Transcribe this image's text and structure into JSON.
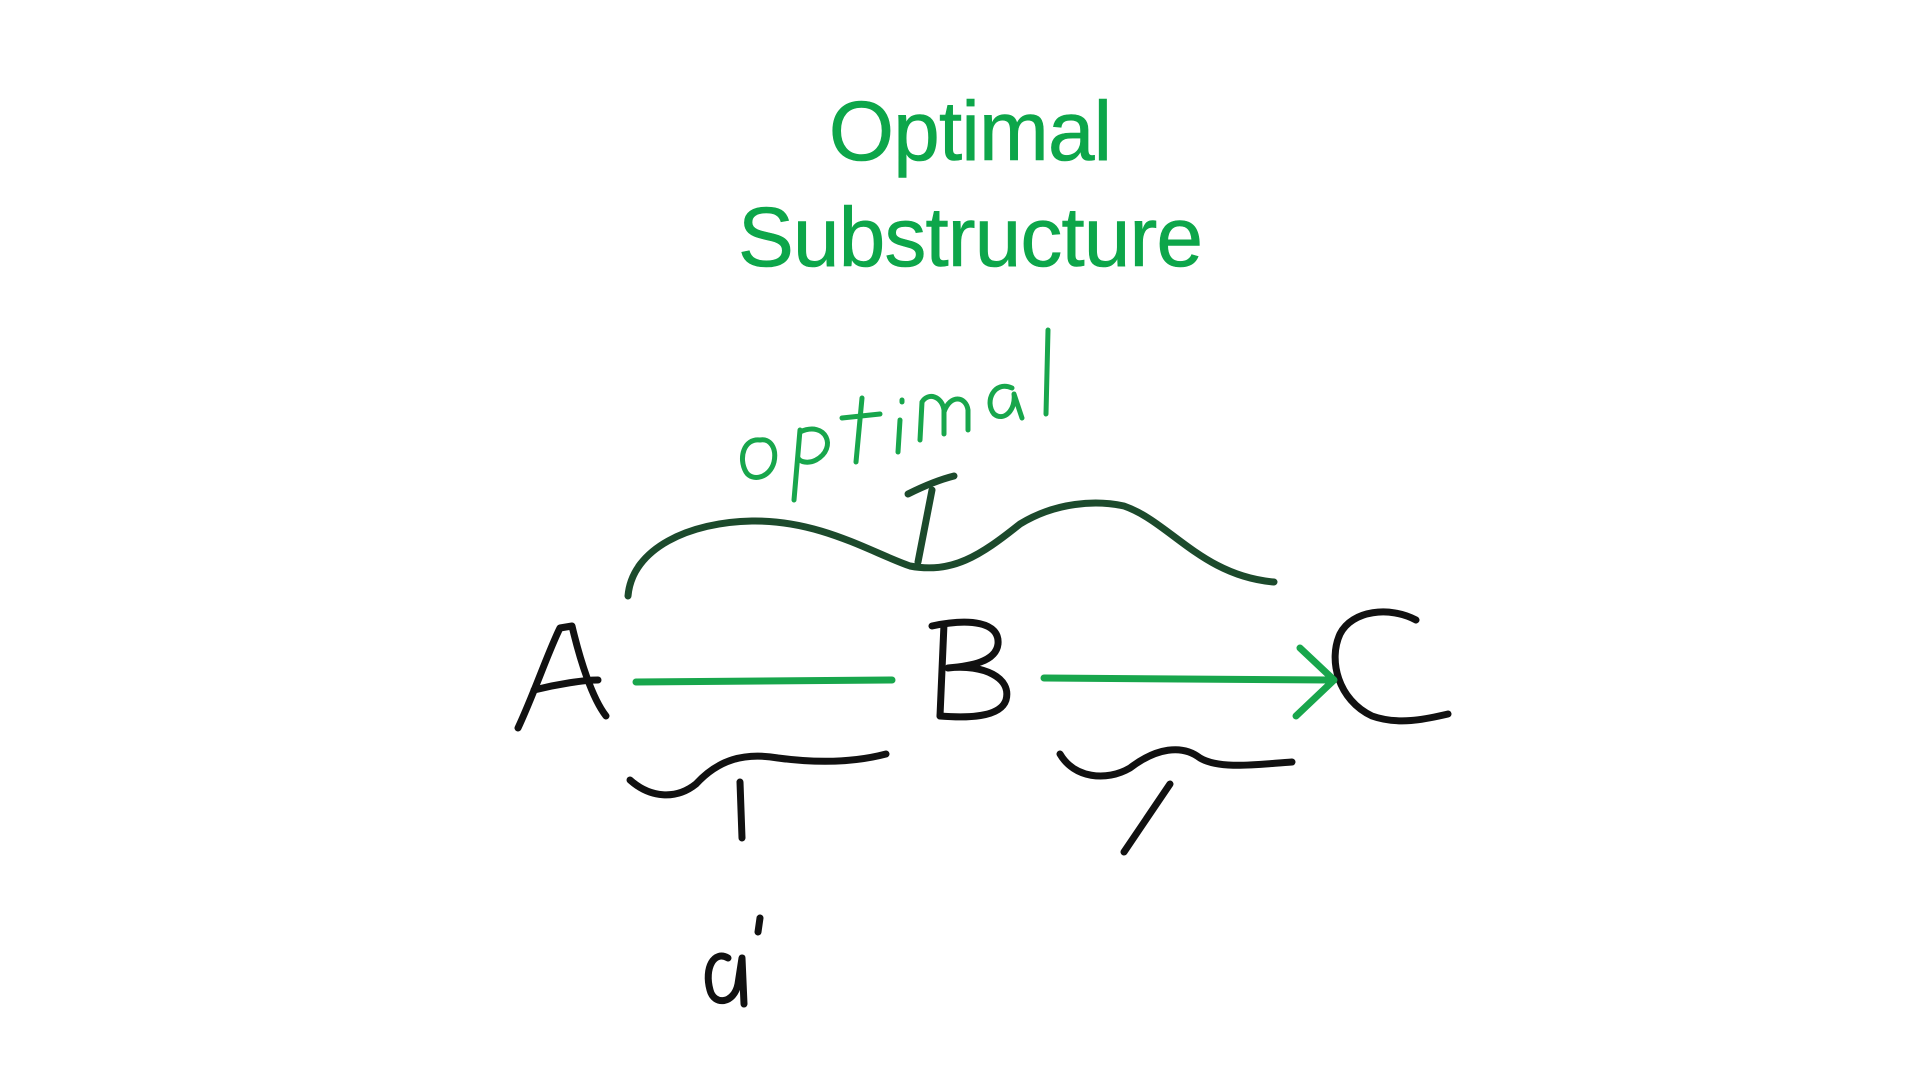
{
  "title": {
    "line1": "Optimal",
    "line2": "Substructure"
  },
  "nodes": [
    "A",
    "B",
    "C"
  ],
  "handwritten": {
    "upper_brace_label": "optimal",
    "lower_left_label": "a'"
  },
  "colors": {
    "title": "#0da64a",
    "handwriting_green": "#18a64c",
    "brace_dark_green": "#1c4a2c",
    "ink_black": "#111111",
    "background": "#ffffff"
  }
}
